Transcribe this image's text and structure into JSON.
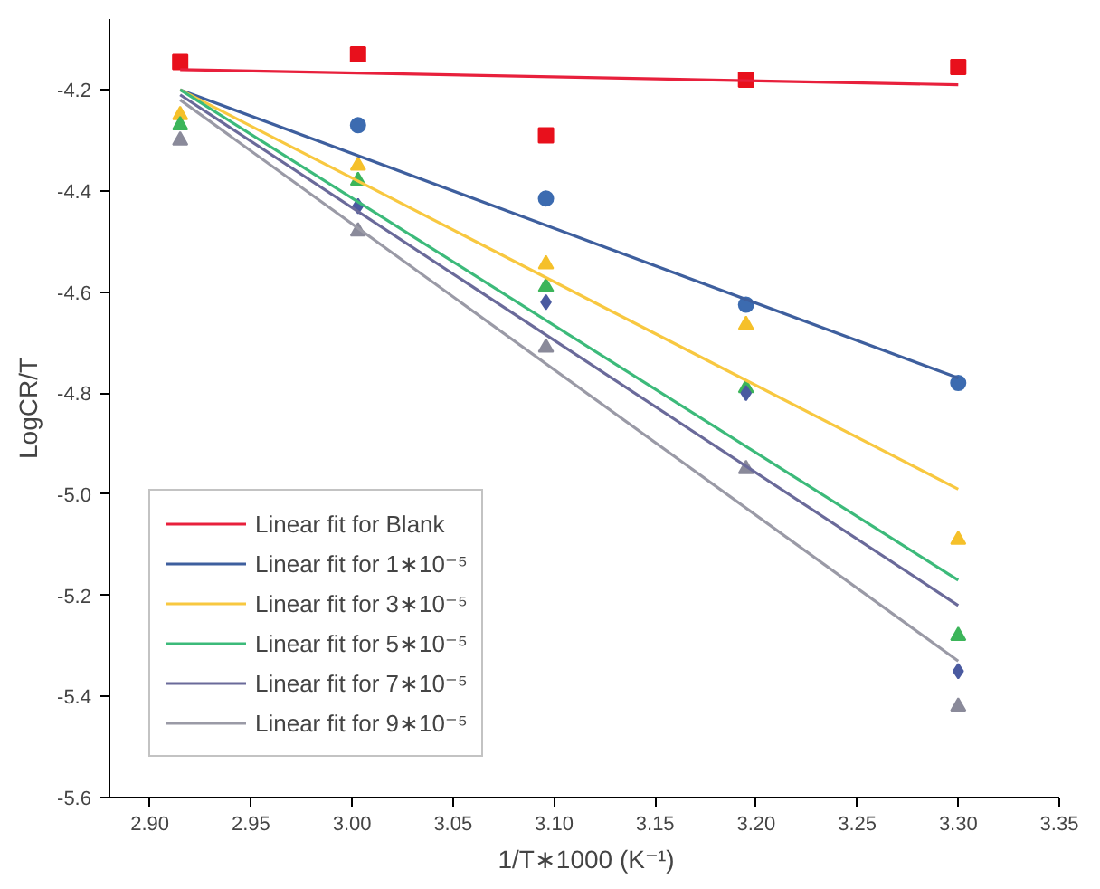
{
  "chart_data": {
    "type": "scatter",
    "xlabel": "1/T∗1000 (K⁻¹)",
    "ylabel": "LogCR/T",
    "xlim": [
      2.88,
      3.35
    ],
    "ylim": [
      -5.6,
      -4.06
    ],
    "xticks": [
      {
        "value": 2.9,
        "label": "2.90"
      },
      {
        "value": 2.95,
        "label": "2.95"
      },
      {
        "value": 3.0,
        "label": "3.00"
      },
      {
        "value": 3.05,
        "label": "3.05"
      },
      {
        "value": 3.1,
        "label": "3.10"
      },
      {
        "value": 3.15,
        "label": "3.15"
      },
      {
        "value": 3.2,
        "label": "3.20"
      },
      {
        "value": 3.25,
        "label": "3.25"
      },
      {
        "value": 3.3,
        "label": "3.30"
      },
      {
        "value": 3.35,
        "label": "3.35"
      }
    ],
    "yticks": [
      -5.6,
      -5.4,
      -5.2,
      {
        "value": -5.0,
        "label": "-5.0"
      },
      -4.8,
      -4.6,
      -4.4,
      -4.2
    ],
    "grid": false,
    "legend": "bottom left",
    "line_style": "solid",
    "series": [
      {
        "marker": "square",
        "color": "#e8101c",
        "x": [
          2.915,
          3.003,
          3.096,
          3.195,
          3.3
        ],
        "values": [
          -4.145,
          -4.13,
          -4.29,
          -4.18,
          -4.155
        ]
      },
      {
        "marker": "circle",
        "color": "#3c6bb0",
        "x": [
          3.003,
          3.096,
          3.195,
          3.3
        ],
        "values": [
          -4.27,
          -4.415,
          -4.625,
          -4.78
        ]
      },
      {
        "marker": "triangle",
        "color": "#f5c02a",
        "x": [
          2.915,
          3.003,
          3.096,
          3.195,
          3.3
        ],
        "values": [
          -4.25,
          -4.35,
          -4.545,
          -4.665,
          -5.09
        ]
      },
      {
        "marker": "triangle",
        "color": "#3cb55a",
        "x": [
          2.915,
          3.003,
          3.096,
          3.195,
          3.3
        ],
        "values": [
          -4.27,
          -4.38,
          -4.59,
          -4.79,
          -5.28
        ]
      },
      {
        "marker": "diamond",
        "color": "#4a5aa0",
        "x": [
          3.003,
          3.096,
          3.195,
          3.3
        ],
        "values": [
          -4.43,
          -4.62,
          -4.8,
          -5.35
        ]
      },
      {
        "marker": "triangle",
        "color": "#8a8a9a",
        "x": [
          2.915,
          3.003,
          3.096,
          3.195,
          3.3
        ],
        "values": [
          -4.3,
          -4.48,
          -4.71,
          -4.95,
          -5.42
        ]
      },
      {
        "type": "line",
        "name": "Linear fit for Blank",
        "color": "#e8203c",
        "x": [
          2.915,
          3.3
        ],
        "values": [
          -4.16,
          -4.19
        ]
      },
      {
        "type": "line",
        "name": "Linear fit for 1∗10⁻⁵",
        "color": "#3e5f9e",
        "x": [
          2.915,
          3.3
        ],
        "values": [
          -4.2,
          -4.77
        ]
      },
      {
        "type": "line",
        "name": "Linear fit for 3∗10⁻⁵",
        "color": "#f8c840",
        "x": [
          2.915,
          3.3
        ],
        "values": [
          -4.2,
          -4.99
        ]
      },
      {
        "type": "line",
        "name": "Linear fit for 5∗10⁻⁵",
        "color": "#3cba7a",
        "x": [
          2.915,
          3.3
        ],
        "values": [
          -4.2,
          -5.17
        ]
      },
      {
        "type": "line",
        "name": "Linear fit for 7∗10⁻⁵",
        "color": "#6a6a9a",
        "x": [
          2.915,
          3.3
        ],
        "values": [
          -4.21,
          -5.22
        ]
      },
      {
        "type": "line",
        "name": "Linear fit for 9∗10⁻⁵",
        "color": "#9a9aa6",
        "x": [
          2.915,
          3.3
        ],
        "values": [
          -4.22,
          -5.33
        ]
      }
    ]
  }
}
